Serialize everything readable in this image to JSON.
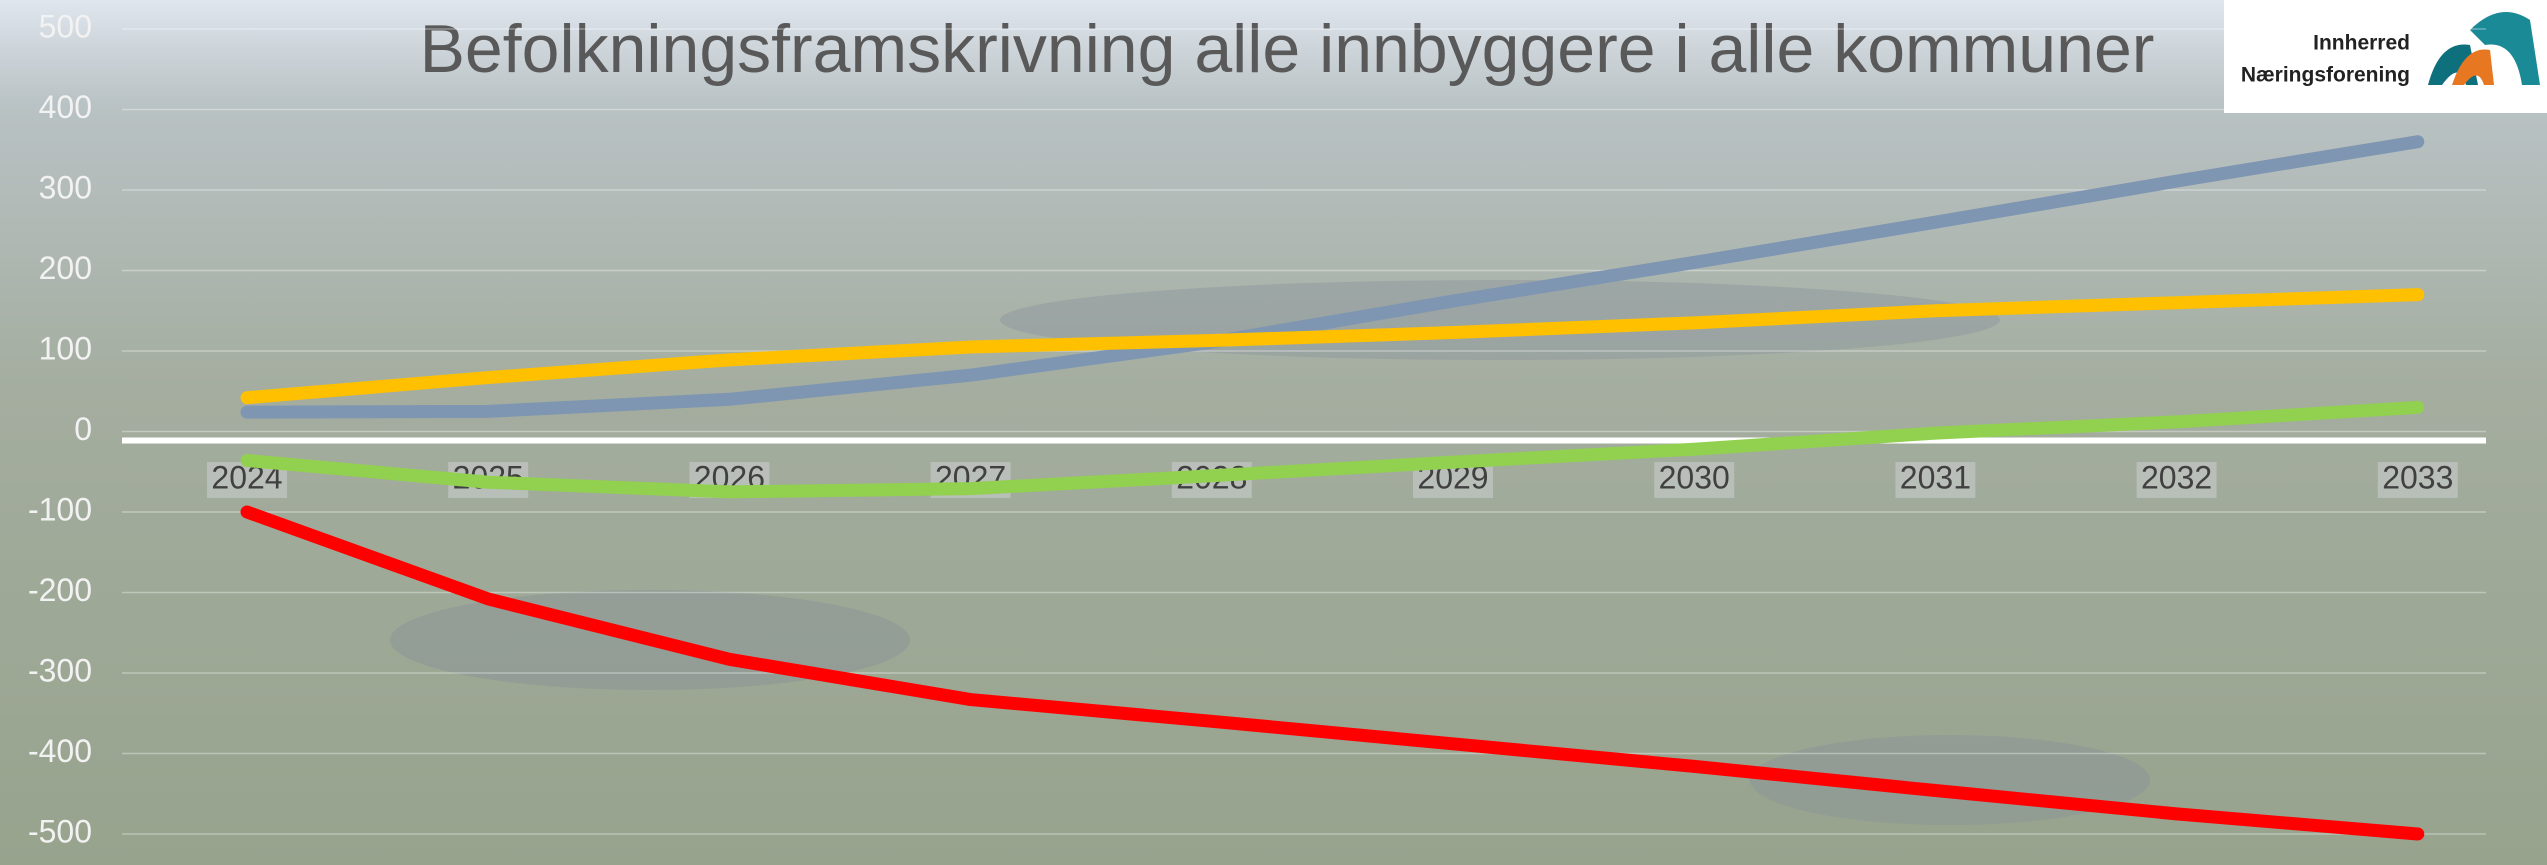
{
  "chart_data": {
    "type": "line",
    "title": "Befolkningsframskrivning alle innbyggere i alle kommuner",
    "annotations": [
      "Innherred",
      "Næringsforening"
    ],
    "categories": [
      "2024",
      "2025",
      "2026",
      "2027",
      "2028",
      "2029",
      "2030",
      "2031",
      "2032",
      "2033"
    ],
    "series": [
      {
        "color": "#7f96b2",
        "values": [
          24,
          25,
          40,
          70,
          111,
          162,
          210,
          260,
          311,
          360
        ]
      },
      {
        "color": "#ffc000",
        "values": [
          42,
          67,
          89,
          105,
          113,
          123,
          135,
          150,
          160,
          170
        ]
      },
      {
        "color": "#92d050",
        "values": [
          -36,
          -63,
          -75,
          -71,
          -55,
          -38,
          -22,
          -2,
          12,
          30
        ]
      },
      {
        "color": "#ff0000",
        "values": [
          -100,
          -208,
          -283,
          -333,
          -360,
          -388,
          -416,
          -446,
          -475,
          -500
        ]
      }
    ],
    "ylim": [
      -500,
      500
    ],
    "yticks": [
      -500,
      -400,
      -300,
      -200,
      -100,
      0,
      100,
      200,
      300,
      400,
      500
    ],
    "grid": true
  }
}
